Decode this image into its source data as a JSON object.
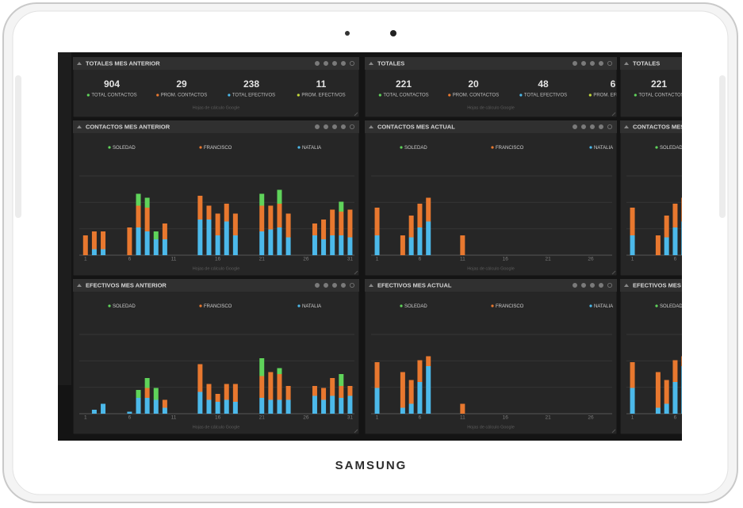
{
  "device": {
    "brand": "SAMSUNG"
  },
  "footer": "Hojas de cálculo Google",
  "totals_prev": {
    "title": "TOTALES MES ANTERIOR",
    "items": [
      {
        "value": 904,
        "label": "TOTAL CONTACTOS",
        "color": "#5fd35a"
      },
      {
        "value": 29,
        "label": "PROM. CONTACTOS",
        "color": "#e8782f"
      },
      {
        "value": 238,
        "label": "TOTAL EFECTIVOS",
        "color": "#4cb9ea"
      },
      {
        "value": 11,
        "label": "PROM. EFECTIVOS",
        "color": "#c3d93a"
      }
    ]
  },
  "totals_current": {
    "title": "TOTALES",
    "items": [
      {
        "value": 221,
        "label": "TOTAL CONTACTOS",
        "color": "#5fd35a"
      },
      {
        "value": 20,
        "label": "PROM. CONTACTOS",
        "color": "#e8782f"
      },
      {
        "value": 48,
        "label": "TOTAL EFECTIVOS",
        "color": "#4cb9ea"
      },
      {
        "value": 6,
        "label": "PROM. EFECTIVOS",
        "color": "#c3d93a"
      }
    ]
  },
  "chart_data": [
    {
      "type": "bar",
      "stacked": true,
      "title": "CONTACTOS MES ANTERIOR",
      "x": [
        1,
        2,
        3,
        6,
        7,
        8,
        9,
        10,
        14,
        15,
        16,
        17,
        18,
        21,
        22,
        23,
        24,
        27,
        28,
        29,
        30,
        31
      ],
      "xlim": [
        0.3,
        31.5
      ],
      "xticks": [
        1,
        6,
        11,
        16,
        21,
        26,
        31
      ],
      "ylim": [
        0,
        40
      ],
      "grid": true,
      "series": [
        {
          "name": "SOLEDAD",
          "color": "#5fd35a",
          "values": [
            0,
            0,
            0,
            0,
            6,
            5,
            4,
            0,
            0,
            0,
            0,
            0,
            0,
            6,
            0,
            7,
            0,
            0,
            0,
            0,
            5,
            0
          ]
        },
        {
          "name": "FRANCISCO",
          "color": "#e8782f",
          "values": [
            10,
            9,
            9,
            14,
            11,
            12,
            0,
            8,
            12,
            7,
            11,
            9,
            11,
            13,
            12,
            12,
            12,
            6,
            10,
            13,
            12,
            14
          ]
        },
        {
          "name": "NATALIA",
          "color": "#4cb9ea",
          "values": [
            0,
            3,
            3,
            0,
            14,
            12,
            8,
            8,
            18,
            18,
            10,
            17,
            10,
            12,
            13,
            14,
            9,
            10,
            8,
            10,
            10,
            9
          ]
        }
      ]
    },
    {
      "type": "bar",
      "stacked": true,
      "title": "EFECTIVOS MES ANTERIOR",
      "x": [
        2,
        3,
        6,
        7,
        8,
        9,
        10,
        14,
        15,
        16,
        17,
        18,
        21,
        22,
        23,
        24,
        27,
        28,
        29,
        30,
        31
      ],
      "xlim": [
        0.3,
        31.5
      ],
      "xticks": [
        1,
        6,
        11,
        16,
        21,
        26,
        31
      ],
      "ylim": [
        0,
        40
      ],
      "grid": true,
      "series": [
        {
          "name": "SOLEDAD",
          "color": "#5fd35a",
          "values": [
            0,
            0,
            0,
            4,
            5,
            6,
            0,
            0,
            0,
            0,
            0,
            0,
            9,
            0,
            3,
            0,
            0,
            0,
            0,
            6,
            0
          ]
        },
        {
          "name": "FRANCISCO",
          "color": "#e8782f",
          "values": [
            0,
            0,
            0,
            0,
            5,
            0,
            4,
            14,
            8,
            4,
            8,
            9,
            11,
            14,
            13,
            7,
            5,
            6,
            9,
            6,
            5
          ]
        },
        {
          "name": "NATALIA",
          "color": "#4cb9ea",
          "values": [
            2,
            5,
            1,
            8,
            8,
            7,
            3,
            11,
            7,
            6,
            7,
            6,
            8,
            7,
            7,
            7,
            9,
            7,
            9,
            8,
            9
          ]
        }
      ]
    },
    {
      "type": "bar",
      "stacked": true,
      "title": "CONTACTOS MES ACTUAL",
      "x": [
        1,
        4,
        5,
        6,
        7,
        11
      ],
      "xlim": [
        0.3,
        28.5
      ],
      "xticks": [
        1,
        6,
        11,
        16,
        21,
        26
      ],
      "ylim": [
        0,
        40
      ],
      "grid": true,
      "series": [
        {
          "name": "SOLEDAD",
          "color": "#5fd35a",
          "values": [
            0,
            0,
            0,
            0,
            0,
            0
          ]
        },
        {
          "name": "FRANCISCO",
          "color": "#e8782f",
          "values": [
            14,
            10,
            11,
            12,
            12,
            10
          ]
        },
        {
          "name": "NATALIA",
          "color": "#4cb9ea",
          "values": [
            10,
            0,
            9,
            14,
            17,
            0
          ]
        }
      ]
    },
    {
      "type": "bar",
      "stacked": true,
      "title": "EFECTIVOS MES ACTUAL",
      "x": [
        1,
        4,
        5,
        6,
        7,
        11
      ],
      "xlim": [
        0.3,
        28.5
      ],
      "xticks": [
        1,
        6,
        11,
        16,
        21,
        26
      ],
      "ylim": [
        0,
        40
      ],
      "grid": true,
      "series": [
        {
          "name": "SOLEDAD",
          "color": "#5fd35a",
          "values": [
            0,
            0,
            0,
            0,
            0,
            0
          ]
        },
        {
          "name": "FRANCISCO",
          "color": "#e8782f",
          "values": [
            13,
            18,
            12,
            11,
            5,
            5
          ]
        },
        {
          "name": "NATALIA",
          "color": "#4cb9ea",
          "values": [
            13,
            3,
            5,
            16,
            24,
            0
          ]
        }
      ]
    }
  ]
}
